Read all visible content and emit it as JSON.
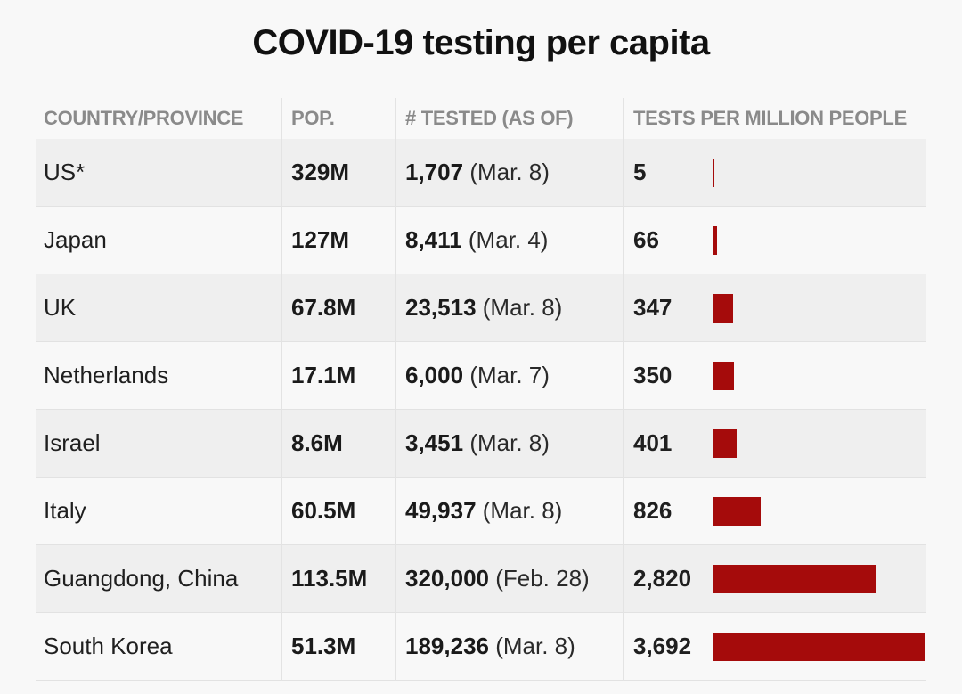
{
  "title": "COVID-19 testing per capita",
  "chart_data": {
    "type": "bar",
    "title": "COVID-19 testing per capita",
    "columns": [
      "COUNTRY/PROVINCE",
      "POP.",
      "# TESTED (AS OF)",
      "TESTS PER MILLION PEOPLE"
    ],
    "categories": [
      "US*",
      "Japan",
      "UK",
      "Netherlands",
      "Israel",
      "Italy",
      "Guangdong, China",
      "South Korea"
    ],
    "population": [
      "329M",
      "127M",
      "67.8M",
      "17.1M",
      "8.6M",
      "60.5M",
      "113.5M",
      "51.3M"
    ],
    "tested": [
      "1,707",
      "8,411",
      "23,513",
      "6,000",
      "3,451",
      "49,937",
      "320,000",
      "189,236"
    ],
    "tested_as_of": [
      "(Mar. 8)",
      "(Mar. 4)",
      "(Mar. 8)",
      "(Mar. 7)",
      "(Mar. 8)",
      "(Mar. 8)",
      "(Feb. 28)",
      "(Mar. 8)"
    ],
    "tests_per_million_labels": [
      "5",
      "66",
      "347",
      "350",
      "401",
      "826",
      "2,820",
      "3,692"
    ],
    "values": [
      5,
      66,
      347,
      350,
      401,
      826,
      2820,
      3692
    ],
    "xlim": [
      0,
      3692
    ],
    "bar_color": "#a50b0b",
    "grid": false
  }
}
